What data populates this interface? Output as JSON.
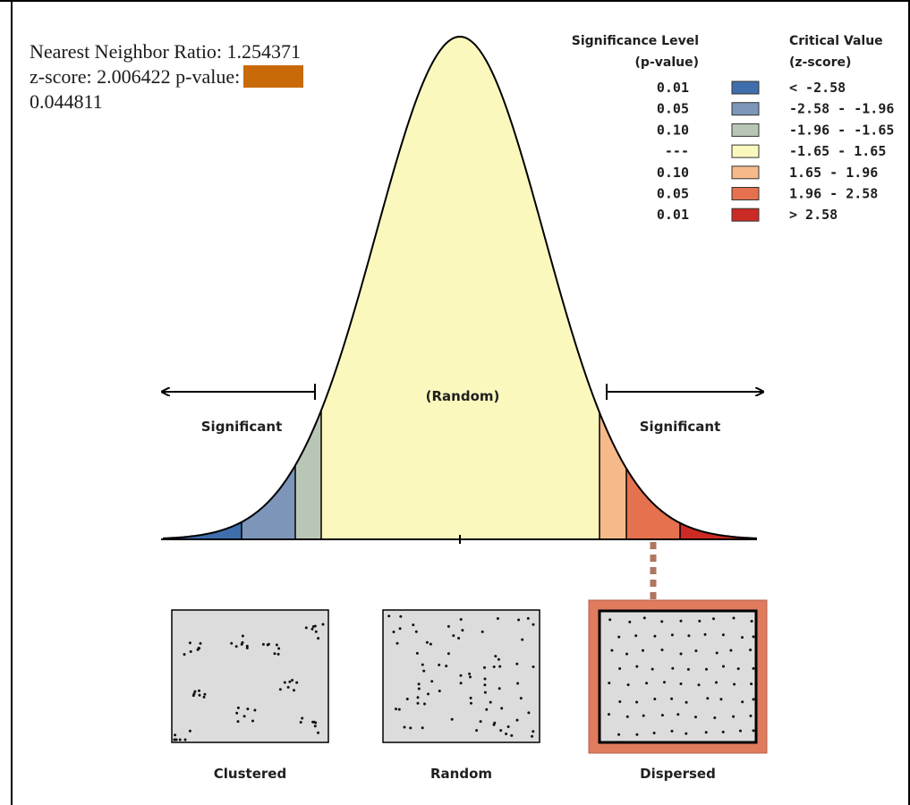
{
  "stats": {
    "ratio_text": "Nearest Neighbor Ratio: 1.254371",
    "zscore_text": "z-score: 2.006422 p-value:",
    "pvalue_text": "0.044811",
    "pvalue_swatch_color": "#C86A0A"
  },
  "legend": {
    "significance_header_line1": "Significance Level",
    "significance_header_line2": "(p-value)",
    "critical_header_line1": "Critical Value",
    "critical_header_line2": "(z-score)",
    "rows": [
      {
        "p": "0.01",
        "z": "< -2.58",
        "color": "#3F6EAD"
      },
      {
        "p": "0.05",
        "z": "-2.58 - -1.96",
        "color": "#7D95B9"
      },
      {
        "p": "0.10",
        "z": "-1.96 - -1.65",
        "color": "#B8C7B5"
      },
      {
        "p": "---",
        "z": "-1.65 - 1.65",
        "color": "#FBF8BE"
      },
      {
        "p": "0.10",
        "z": " 1.65 - 1.96",
        "color": "#F6B98A"
      },
      {
        "p": "0.05",
        "z": " 1.96 - 2.58",
        "color": "#E5714F"
      },
      {
        "p": "0.01",
        "z": "> 2.58",
        "color": "#CC2A24"
      }
    ]
  },
  "curve": {
    "center_label": "(Random)",
    "left_label": "Significant",
    "right_label": "Significant",
    "highlight_bin": 5
  },
  "patterns": [
    {
      "label": "Clustered",
      "kind": "clustered"
    },
    {
      "label": "Random",
      "kind": "random"
    },
    {
      "label": "Dispersed",
      "kind": "dispersed",
      "highlighted": true,
      "highlight_color": "#E07B5E"
    }
  ]
}
